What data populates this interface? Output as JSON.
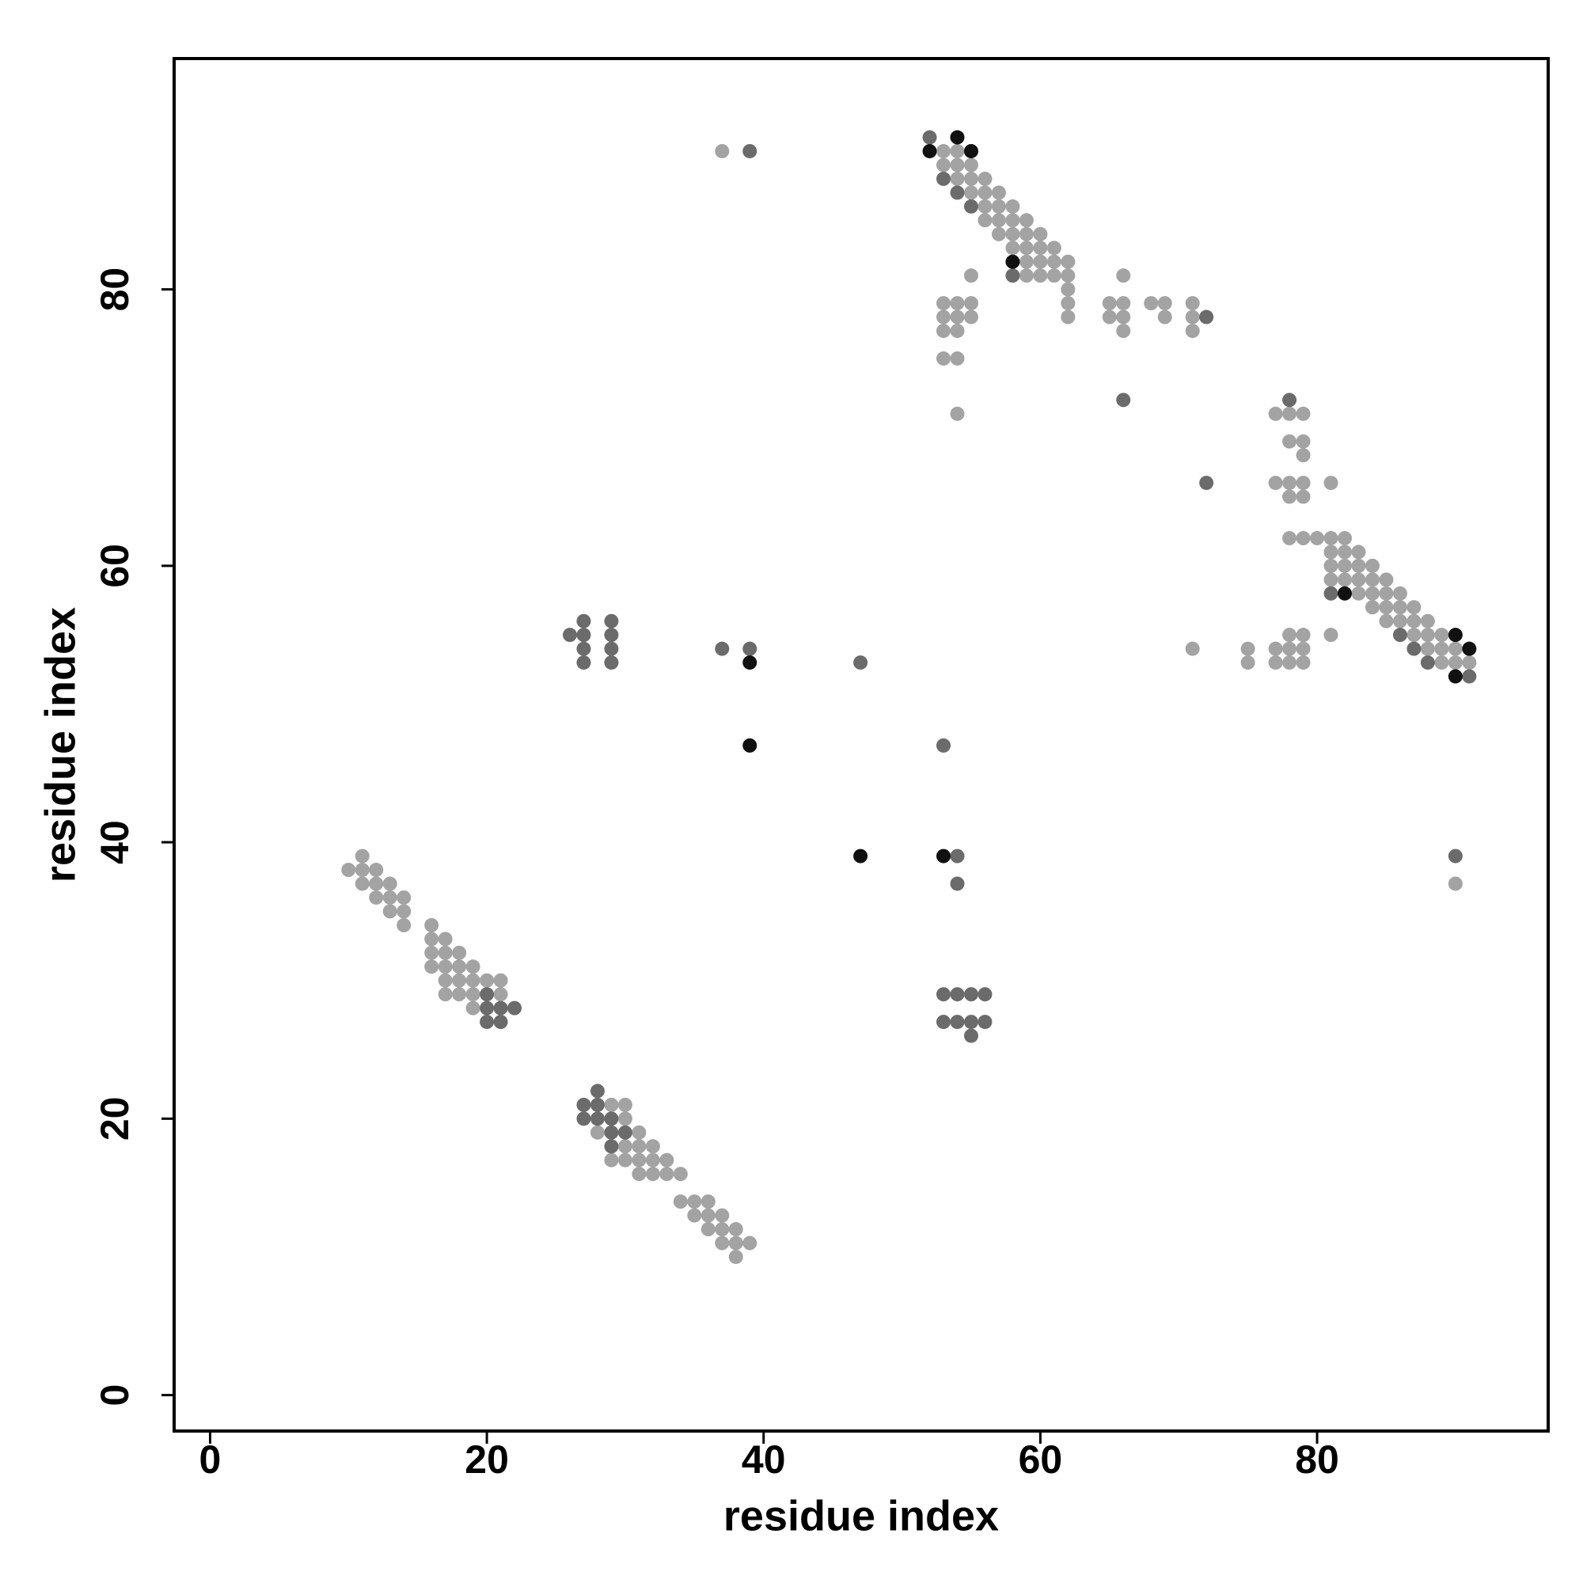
{
  "chart_data": {
    "type": "scatter",
    "x_label": "residue index",
    "y_label": "residue index",
    "xlim": [
      -2.6,
      96.7
    ],
    "ylim": [
      -2.6,
      96.7
    ],
    "xticks": [
      0,
      20,
      40,
      60,
      80
    ],
    "yticks": [
      0,
      20,
      40,
      60,
      80
    ],
    "grid": false,
    "series": [
      {
        "color": "#a3a3a3",
        "x": [
          37,
          53,
          54,
          53,
          54,
          55,
          54,
          55,
          56,
          55,
          56,
          57,
          56,
          57,
          58,
          56,
          57,
          58,
          59,
          57,
          58,
          59,
          60,
          58,
          59,
          60,
          61,
          59,
          60,
          61,
          62,
          55,
          59,
          60,
          61,
          62,
          66,
          62,
          53,
          54,
          55,
          62,
          65,
          66,
          68,
          69,
          71,
          53,
          54,
          55,
          62,
          65,
          66,
          69,
          71,
          53,
          54,
          66,
          71,
          53,
          54,
          54,
          77,
          78,
          79,
          78,
          79,
          79,
          77,
          78,
          79,
          81,
          78,
          79,
          78,
          79,
          80,
          81,
          82,
          81,
          82,
          83,
          81,
          82,
          83,
          84,
          81,
          82,
          83,
          84,
          85,
          83,
          84,
          85,
          86,
          84,
          85,
          86,
          87,
          85,
          86,
          87,
          88,
          78,
          79,
          81,
          87,
          88,
          89,
          71,
          75,
          77,
          78,
          79,
          88,
          89,
          90,
          75,
          77,
          78,
          79,
          89,
          90,
          91,
          90,
          11,
          10,
          11,
          12,
          11,
          12,
          13,
          12,
          13,
          14,
          13,
          14,
          14,
          16,
          16,
          17,
          16,
          17,
          18,
          16,
          17,
          18,
          19,
          17,
          18,
          19,
          20,
          21,
          17,
          18,
          19,
          21,
          19,
          29,
          30,
          30,
          28,
          31,
          30,
          31,
          32,
          29,
          30,
          31,
          32,
          33,
          31,
          32,
          33,
          34,
          34,
          35,
          36,
          35,
          36,
          37,
          36,
          37,
          38,
          37,
          38,
          39,
          38
        ],
        "values": [
          90,
          90,
          90,
          89,
          89,
          89,
          88,
          88,
          88,
          87,
          87,
          87,
          86,
          86,
          86,
          85,
          85,
          85,
          85,
          84,
          84,
          84,
          84,
          83,
          83,
          83,
          83,
          82,
          82,
          82,
          82,
          81,
          81,
          81,
          81,
          81,
          81,
          80,
          79,
          79,
          79,
          79,
          79,
          79,
          79,
          79,
          79,
          78,
          78,
          78,
          78,
          78,
          78,
          78,
          78,
          77,
          77,
          77,
          77,
          75,
          75,
          71,
          71,
          71,
          71,
          69,
          69,
          68,
          66,
          66,
          66,
          66,
          65,
          65,
          62,
          62,
          62,
          62,
          62,
          61,
          61,
          61,
          60,
          60,
          60,
          60,
          59,
          59,
          59,
          59,
          59,
          58,
          58,
          58,
          58,
          57,
          57,
          57,
          57,
          56,
          56,
          56,
          56,
          55,
          55,
          55,
          55,
          55,
          55,
          54,
          54,
          54,
          54,
          54,
          54,
          54,
          54,
          53,
          53,
          53,
          53,
          53,
          53,
          53,
          37,
          39,
          38,
          38,
          38,
          37,
          37,
          37,
          36,
          36,
          36,
          35,
          35,
          34,
          34,
          33,
          33,
          32,
          32,
          32,
          31,
          31,
          31,
          31,
          30,
          30,
          30,
          30,
          30,
          29,
          29,
          29,
          29,
          28,
          21,
          21,
          20,
          19,
          19,
          18,
          18,
          18,
          17,
          17,
          17,
          17,
          17,
          16,
          16,
          16,
          16,
          14,
          14,
          14,
          13,
          13,
          13,
          12,
          12,
          12,
          11,
          11,
          11,
          10
        ]
      },
      {
        "color": "#6b6b6b",
        "x": [
          52,
          39,
          53,
          54,
          55,
          58,
          72,
          66,
          78,
          72,
          81,
          86,
          87,
          88,
          91,
          27,
          29,
          26,
          27,
          29,
          27,
          29,
          37,
          39,
          27,
          29,
          47,
          53,
          54,
          90,
          54,
          20,
          53,
          54,
          55,
          56,
          20,
          21,
          22,
          20,
          21,
          53,
          54,
          55,
          56,
          55,
          28,
          27,
          28,
          27,
          28,
          29,
          29,
          30,
          29
        ],
        "values": [
          91,
          90,
          88,
          87,
          86,
          81,
          78,
          72,
          72,
          66,
          58,
          55,
          54,
          53,
          52,
          56,
          56,
          55,
          55,
          55,
          54,
          54,
          54,
          54,
          53,
          53,
          53,
          47,
          39,
          39,
          37,
          29,
          29,
          29,
          29,
          29,
          28,
          28,
          28,
          27,
          27,
          27,
          27,
          27,
          27,
          26,
          22,
          21,
          21,
          20,
          20,
          20,
          19,
          19,
          18
        ]
      },
      {
        "color": "#111111",
        "x": [
          54,
          52,
          55,
          58,
          82,
          90,
          91,
          90,
          39,
          39,
          47,
          53
        ],
        "values": [
          91,
          90,
          90,
          82,
          58,
          55,
          54,
          52,
          53,
          47,
          39,
          39
        ]
      }
    ]
  }
}
